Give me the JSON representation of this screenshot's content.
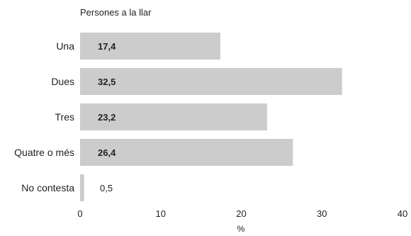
{
  "chart_data": {
    "type": "bar",
    "orientation": "horizontal",
    "title": "Persones a la llar",
    "categories": [
      "Una",
      "Dues",
      "Tres",
      "Quatre o més",
      "No contesta"
    ],
    "values": [
      17.4,
      32.5,
      23.2,
      26.4,
      0.5
    ],
    "value_labels": [
      "17,4",
      "32,5",
      "23,2",
      "26,4",
      "0,5"
    ],
    "xlabel": "%",
    "ylabel": "",
    "xlim": [
      0,
      40
    ],
    "xticks": [
      0,
      10,
      20,
      30,
      40
    ],
    "grid": false,
    "legend": "none",
    "bar_color": "#cccccc",
    "text_color": "#222222"
  }
}
